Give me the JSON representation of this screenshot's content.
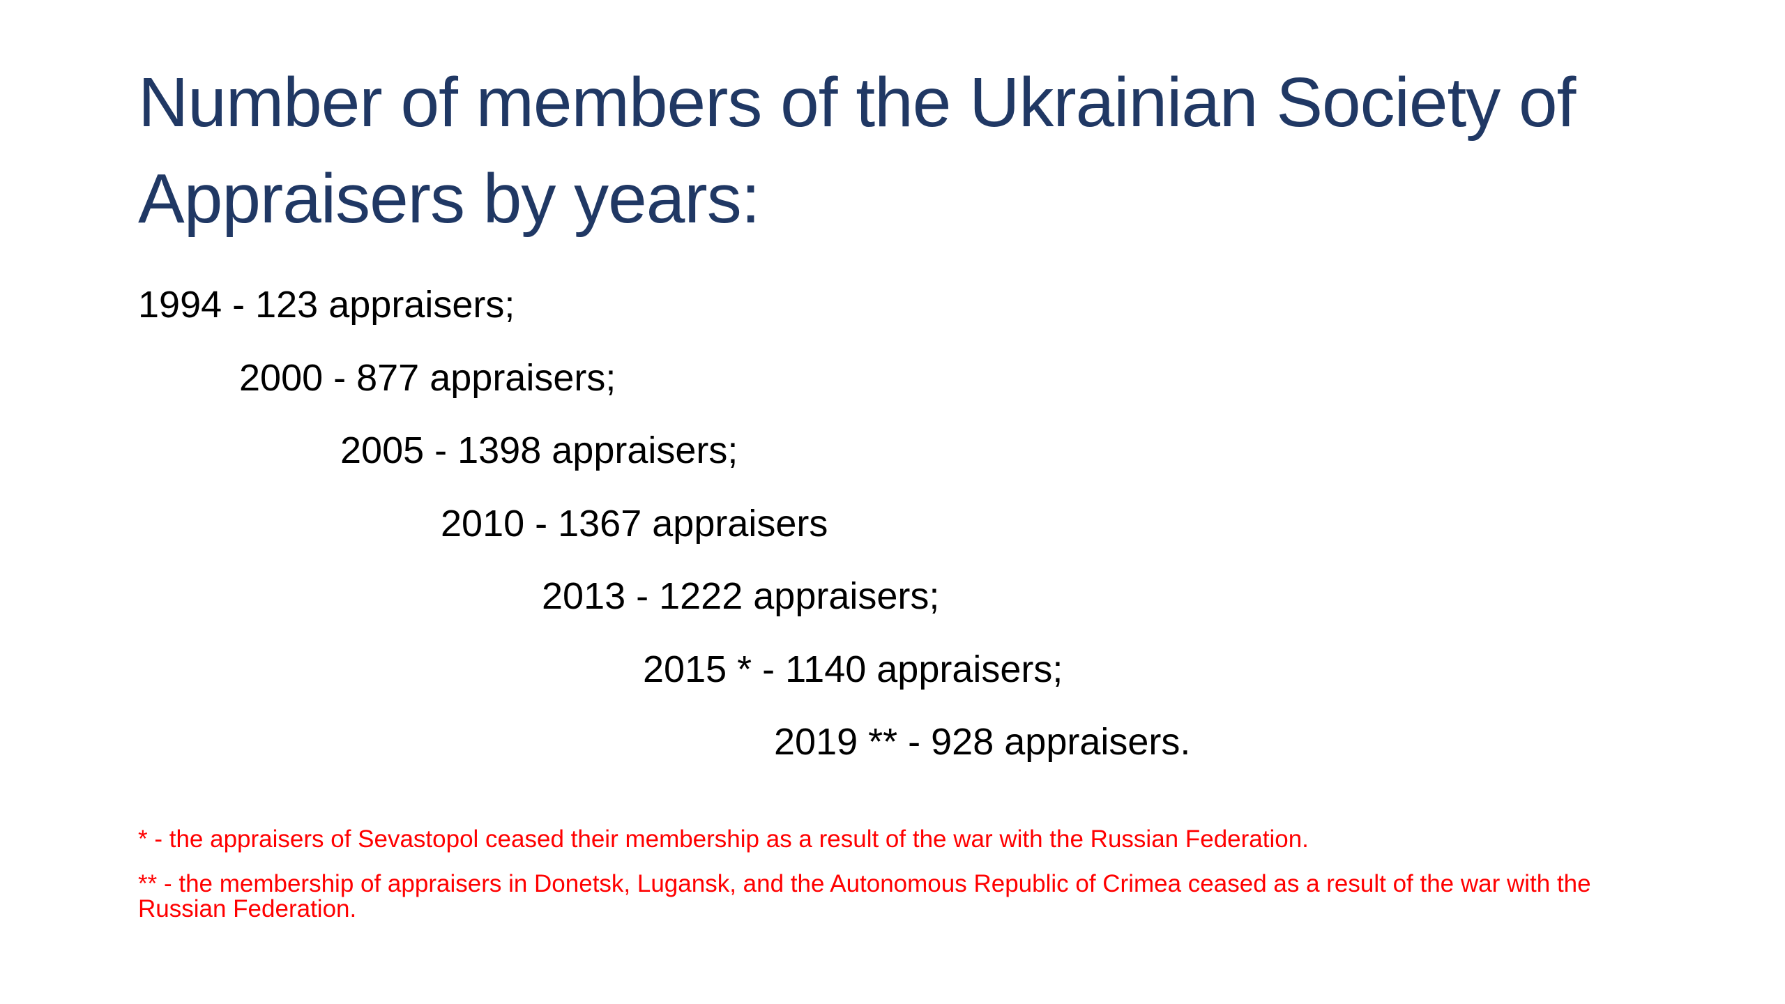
{
  "title": "Number of members of the Ukrainian Society of Appraisers by years:",
  "entries": [
    "1994 - 123 appraisers;",
    "2000 - 877 appraisers;",
    "2005 - 1398 appraisers;",
    "2010 - 1367 appraisers",
    "2013 - 1222 appraisers;",
    "2015 * - 1140 appraisers;",
    "2019 ** - 928 appraisers."
  ],
  "footnotes": [
    "* - the appraisers of Sevastopol ceased their membership as a result of the war with the Russian Federation.",
    "** - the membership of appraisers in Donetsk, Lugansk, and the Autonomous Republic of Crimea ceased as a result of the war with the Russian Federation."
  ]
}
